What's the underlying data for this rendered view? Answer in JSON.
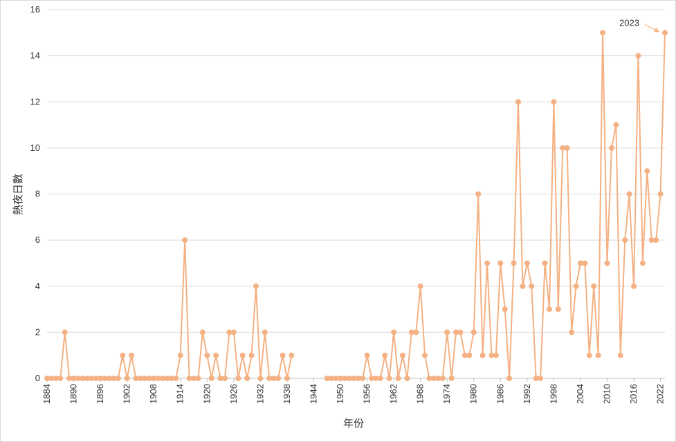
{
  "chart_data": {
    "type": "line",
    "title": "",
    "xlabel": "年份",
    "ylabel": "熱夜日數",
    "ylim": [
      0,
      16
    ],
    "yticks": [
      0,
      2,
      4,
      6,
      8,
      10,
      12,
      14,
      16
    ],
    "xlim": [
      1884,
      2023
    ],
    "xticks": [
      1884,
      1890,
      1896,
      1902,
      1908,
      1914,
      1920,
      1926,
      1932,
      1938,
      1944,
      1950,
      1956,
      1962,
      1968,
      1974,
      1980,
      1986,
      1992,
      1998,
      2004,
      2010,
      2016,
      2022
    ],
    "grid": "horizontal",
    "color": "#F4B183",
    "annotation": {
      "text": "2023",
      "x": 2023,
      "y": 15
    },
    "segments": [
      {
        "start_year": 1884,
        "values": [
          0,
          0,
          0,
          0,
          2,
          0,
          0,
          0,
          0,
          0,
          0,
          0,
          0,
          0,
          0,
          0,
          0,
          1,
          0,
          1,
          0,
          0,
          0,
          0,
          0,
          0,
          0,
          0,
          0,
          0,
          1,
          6,
          0,
          0,
          0,
          2,
          1,
          0,
          1,
          0,
          0,
          2,
          2,
          0,
          1,
          0,
          1,
          4,
          0,
          2,
          0,
          0,
          0,
          1,
          0,
          1
        ]
      },
      {
        "start_year": 1947,
        "values": [
          0,
          0,
          0,
          0,
          0,
          0,
          0,
          0,
          0,
          1,
          0,
          0,
          0,
          1,
          0,
          2,
          0,
          1,
          0,
          2,
          2,
          4,
          1,
          0,
          0,
          0,
          0,
          2,
          0,
          2,
          2,
          1,
          1,
          2,
          8,
          1,
          5,
          1,
          1,
          5,
          3,
          0,
          5,
          12,
          4,
          5,
          4,
          0,
          0,
          5,
          3,
          12,
          3,
          10,
          10,
          2,
          4,
          5,
          5,
          1,
          4,
          1,
          15,
          5,
          10,
          11,
          1,
          6,
          8,
          4,
          14,
          5,
          9,
          6,
          6,
          8,
          15
        ]
      }
    ]
  }
}
